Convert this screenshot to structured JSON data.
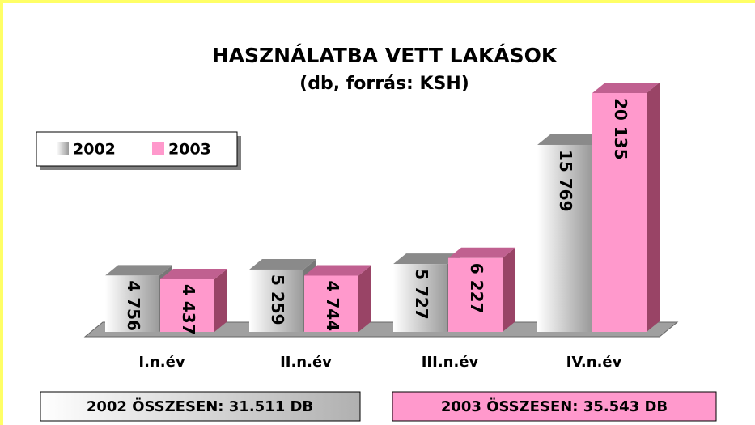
{
  "chart_data": {
    "type": "bar3d",
    "title": "HASZNÁLATBA VETT LAKÁSOK",
    "subtitle": "(db, forrás: KSH)",
    "categories": [
      "I.n.év",
      "II.n.év",
      "III.n.év",
      "IV.n.év"
    ],
    "series": [
      {
        "name": "2002",
        "color": "#c0c0c0",
        "values": [
          4756,
          5259,
          5727,
          15769
        ],
        "value_labels": [
          "4 756",
          "5 259",
          "5 727",
          "15 769"
        ]
      },
      {
        "name": "2003",
        "color": "#ff99cc",
        "values": [
          4437,
          4744,
          6227,
          20135
        ],
        "value_labels": [
          "4 437",
          "4 744",
          "6 227",
          "20 135"
        ]
      }
    ],
    "annotations": [
      "2002 ÖSSZESEN: 31.511 DB",
      "2003 ÖSSZESEN: 35.543 DB"
    ]
  }
}
